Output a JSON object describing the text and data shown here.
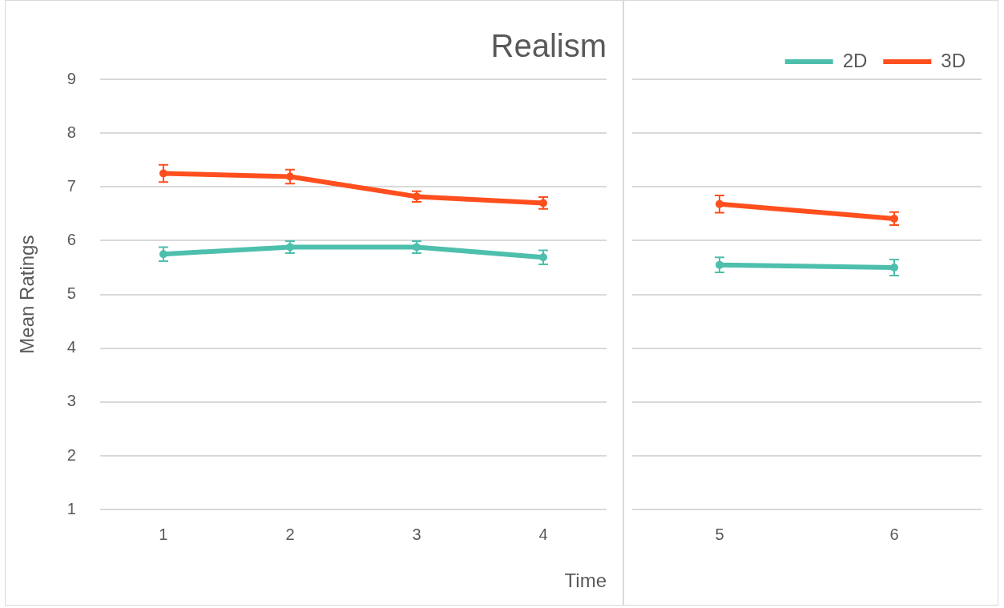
{
  "chart_data": [
    {
      "type": "line",
      "title": "Realism",
      "xlabel": "Time",
      "ylabel": "Mean Ratings",
      "categories": [
        "1",
        "2",
        "3",
        "4"
      ],
      "ylim": [
        1,
        9
      ],
      "yticks": [
        1,
        2,
        3,
        4,
        5,
        6,
        7,
        8,
        9
      ],
      "grid": "y",
      "marker": "circle",
      "line_style": "solid",
      "legend": false,
      "series": [
        {
          "color": "#4dbfad",
          "values": [
            5.75,
            5.88,
            5.88,
            5.69
          ],
          "errors": [
            0.13,
            0.11,
            0.11,
            0.13
          ]
        },
        {
          "color": "#ff4f1e",
          "values": [
            7.25,
            7.19,
            6.82,
            6.7
          ],
          "errors": [
            0.16,
            0.13,
            0.1,
            0.11
          ]
        }
      ]
    },
    {
      "type": "line",
      "categories": [
        "5",
        "6"
      ],
      "ylim": [
        1,
        9
      ],
      "yticks": [
        1,
        2,
        3,
        4,
        5,
        6,
        7,
        8,
        9
      ],
      "grid": "y",
      "tick_labels": "x",
      "marker": "circle",
      "line_style": "solid",
      "legend": "top right",
      "series": [
        {
          "name": "2D",
          "color": "#4dbfad",
          "values": [
            5.55,
            5.5
          ],
          "errors": [
            0.14,
            0.15
          ]
        },
        {
          "name": "3D",
          "color": "#ff4f1e",
          "values": [
            6.68,
            6.41
          ],
          "errors": [
            0.16,
            0.12
          ]
        }
      ]
    }
  ]
}
